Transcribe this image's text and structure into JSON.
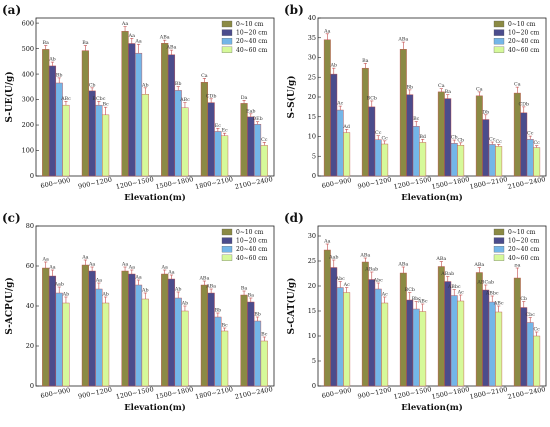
{
  "panel_letters": [
    "(a)",
    "(b)",
    "(c)",
    "(d)"
  ],
  "legend_entries": [
    "0~10 cm",
    "10~20 cm",
    "20~40 cm",
    "40~60 cm"
  ],
  "colors": {
    "s0_10": "#8b8a44",
    "s10_20": "#4b4c8c",
    "s20_40": "#74b6e8",
    "s40_60": "#d6f99a",
    "bar_stroke": "#c04a4a"
  },
  "chart_data": [
    {
      "type": "bar",
      "panel": "(a)",
      "categories": [
        "600~900",
        "900~1200",
        "1200~1500",
        "1500~1800",
        "1800~2100",
        "2100~2400"
      ],
      "xlabel": "Elevation(m)",
      "ylabel": "S-UE(U/g)",
      "ylim": [
        0,
        620
      ],
      "yticks": [
        0,
        100,
        200,
        300,
        400,
        500,
        600
      ],
      "legend": "top-right",
      "series": [
        {
          "name": "0~10 cm",
          "values": [
            497,
            492,
            568,
            521,
            368,
            285
          ],
          "errors": [
            15,
            20,
            18,
            12,
            15,
            12
          ],
          "labels": [
            "Ba",
            "Ba",
            "Aa",
            "ABa",
            "Ca",
            "Da"
          ]
        },
        {
          "name": "10~20 cm",
          "values": [
            432,
            334,
            520,
            476,
            288,
            232
          ],
          "errors": [
            15,
            12,
            20,
            18,
            15,
            12
          ],
          "labels": [
            "Ab",
            "Cb",
            "Aa",
            "ABa",
            "CDb",
            "Eab"
          ]
        },
        {
          "name": "20~40 cm",
          "values": [
            365,
            278,
            482,
            336,
            175,
            203
          ],
          "errors": [
            20,
            15,
            35,
            15,
            12,
            10
          ],
          "labels": [
            "Bb",
            "BCbc",
            "Aa",
            "Bb",
            "Ec",
            "DEb"
          ]
        },
        {
          "name": "40~60 cm",
          "values": [
            278,
            240,
            321,
            268,
            158,
            120
          ],
          "errors": [
            15,
            30,
            25,
            20,
            10,
            12
          ],
          "labels": [
            "ABc",
            "Bc",
            "Ab",
            "ABc",
            "Ec",
            "Cc"
          ]
        }
      ]
    },
    {
      "type": "bar",
      "panel": "(b)",
      "categories": [
        "600~900",
        "900~1200",
        "1200~1500",
        "1500~1800",
        "1800~2100",
        "2100~2400"
      ],
      "xlabel": "Elevation(m)",
      "ylabel": "S-S(U/g)",
      "ylim": [
        0,
        40
      ],
      "yticks": [
        0,
        5,
        10,
        15,
        20,
        25,
        30,
        35,
        40
      ],
      "legend": "top-right",
      "series": [
        {
          "name": "0~10 cm",
          "values": [
            34.5,
            27.3,
            32.1,
            21.3,
            20.3,
            21.0
          ],
          "errors": [
            1.5,
            1.2,
            1.8,
            0.8,
            1.0,
            1.5
          ],
          "labels": [
            "Aa",
            "Ba",
            "ABa",
            "Ca",
            "Ca",
            "Ca"
          ]
        },
        {
          "name": "10~20 cm",
          "values": [
            25.8,
            17.5,
            20.6,
            19.6,
            14.3,
            16.0
          ],
          "errors": [
            1.5,
            1.5,
            1.2,
            1.0,
            1.2,
            1.5
          ],
          "labels": [
            "Ab",
            "BCb",
            "Bb",
            "Ba",
            "Db",
            "CDb"
          ]
        },
        {
          "name": "20~40 cm",
          "values": [
            16.7,
            9.2,
            12.6,
            8.3,
            8.0,
            9.3
          ],
          "errors": [
            1.0,
            1.0,
            1.2,
            0.8,
            0.6,
            0.8
          ],
          "labels": [
            "Ac",
            "Cc",
            "Bc",
            "Cb",
            "Cc",
            "Cc"
          ]
        },
        {
          "name": "40~60 cm",
          "values": [
            11.0,
            8.1,
            8.5,
            7.8,
            7.5,
            7.2
          ],
          "errors": [
            0.8,
            0.8,
            0.8,
            0.6,
            0.5,
            0.5
          ],
          "labels": [
            "Ad",
            "Cc",
            "Bd",
            "Cb",
            "Cc",
            "Cc"
          ]
        }
      ]
    },
    {
      "type": "bar",
      "panel": "(c)",
      "categories": [
        "600~900",
        "900~1200",
        "1200~1500",
        "1500~1800",
        "1800~2100",
        "2100~2400"
      ],
      "xlabel": "Elevation(m)",
      "ylabel": "S-ACP(U/g)",
      "ylim": [
        0,
        80
      ],
      "yticks": [
        0,
        20,
        40,
        60,
        80
      ],
      "legend": "top-right",
      "series": [
        {
          "name": "0~10 cm",
          "values": [
            59,
            60.5,
            57.5,
            56,
            50.5,
            45.5
          ],
          "errors": [
            3,
            2.5,
            2,
            2,
            2,
            2
          ],
          "labels": [
            "Aa",
            "Aa",
            "Aa",
            "Aa",
            "ABa",
            "Ba"
          ]
        },
        {
          "name": "10~20 cm",
          "values": [
            55,
            57.5,
            56,
            53.5,
            46.5,
            42
          ],
          "errors": [
            3,
            2,
            2,
            2,
            2,
            2
          ],
          "labels": [
            "Aa",
            "Aa",
            "Aa",
            "Aa",
            "ABa",
            "Ba"
          ]
        },
        {
          "name": "20~40 cm",
          "values": [
            46.5,
            48.5,
            50.5,
            44,
            34.5,
            32.5
          ],
          "errors": [
            3,
            3,
            2.5,
            3,
            2,
            2
          ],
          "labels": [
            "Aab",
            "Aa",
            "Aa",
            "Ab",
            "Bb",
            "Bb"
          ]
        },
        {
          "name": "40~60 cm",
          "values": [
            41.5,
            41.5,
            43.5,
            37.5,
            27.5,
            22.5
          ],
          "errors": [
            3,
            3,
            3,
            2.5,
            1.5,
            2
          ],
          "labels": [
            "Ab",
            "Ab",
            "Ab",
            "Ab",
            "Bc",
            "Bc"
          ]
        }
      ]
    },
    {
      "type": "bar",
      "panel": "(d)",
      "categories": [
        "600~900",
        "900~1200",
        "1200~1500",
        "1500~1800",
        "1800~2100",
        "2100~2400"
      ],
      "xlabel": "Elevation(m)",
      "ylabel": "S-CAT(U/g)",
      "ylim": [
        0,
        32
      ],
      "yticks": [
        0,
        5,
        10,
        15,
        20,
        25,
        30
      ],
      "legend": "top-right",
      "series": [
        {
          "name": "0~10 cm",
          "values": [
            27.2,
            24.8,
            22.6,
            23.9,
            22.7,
            21.6
          ],
          "errors": [
            1.2,
            0.8,
            1.2,
            1.0,
            1.0,
            2.0
          ],
          "labels": [
            "Aa",
            "ABa",
            "ABa",
            "ABa",
            "ABa",
            "Ba"
          ]
        },
        {
          "name": "10~20 cm",
          "values": [
            23.7,
            21.3,
            17.2,
            20.9,
            19.2,
            15.7
          ],
          "errors": [
            1.5,
            1.5,
            1.5,
            1.0,
            1.0,
            1.2
          ],
          "labels": [
            "Aab",
            "ABab",
            "BCb",
            "ABab",
            "ABCab",
            "Cb"
          ]
        },
        {
          "name": "20~40 cm",
          "values": [
            19.7,
            19.4,
            15.4,
            18.1,
            16.8,
            12.7
          ],
          "errors": [
            1.2,
            1.2,
            1.5,
            1.2,
            1.2,
            1.0
          ],
          "labels": [
            "Abc",
            "Abc",
            "Bbc",
            "ABbc",
            "ABbc",
            "Cbc"
          ]
        },
        {
          "name": "40~60 cm",
          "values": [
            18.7,
            16.6,
            14.9,
            17.0,
            14.8,
            10.0
          ],
          "errors": [
            1.0,
            1.2,
            1.5,
            1.2,
            1.2,
            0.8
          ],
          "labels": [
            "Ac",
            "Ac",
            "ABc",
            "Ac",
            "ABc",
            "Cc"
          ]
        }
      ]
    }
  ]
}
